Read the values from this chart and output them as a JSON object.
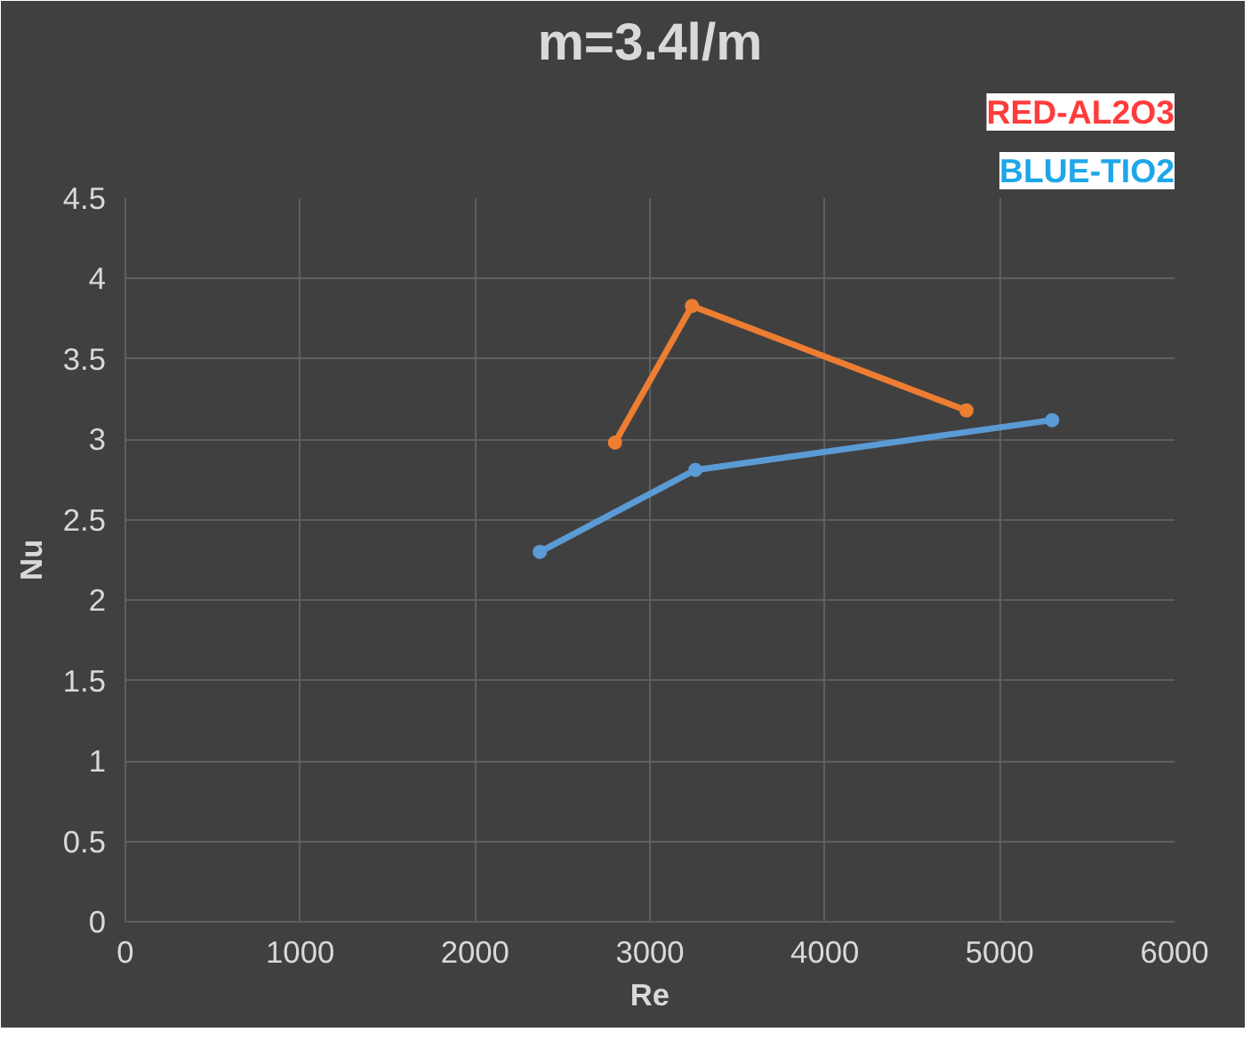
{
  "chart_data": {
    "type": "line",
    "title": "m=3.4l/m",
    "xlabel": "Re",
    "ylabel": "Nu",
    "series": [
      {
        "color": "#ed7d31",
        "x": [
          2800,
          3240,
          4810
        ],
        "values": [
          2.98,
          3.83,
          3.18
        ]
      },
      {
        "color": "#5b9bd5",
        "x": [
          2370,
          3260,
          5300
        ],
        "values": [
          2.3,
          2.81,
          3.12
        ]
      }
    ],
    "xlim": [
      0,
      6000
    ],
    "xticks": [
      0,
      1000,
      2000,
      3000,
      4000,
      5000,
      6000
    ],
    "ylim": [
      0,
      4.5
    ],
    "yticks": [
      0,
      0.5,
      1,
      1.5,
      2,
      2.5,
      3,
      3.5,
      4,
      4.5
    ],
    "grid": true,
    "marker": "circle",
    "line_style": "solid",
    "annotations": [
      "RED-AL2O3",
      "BLUE-TIO2"
    ]
  }
}
